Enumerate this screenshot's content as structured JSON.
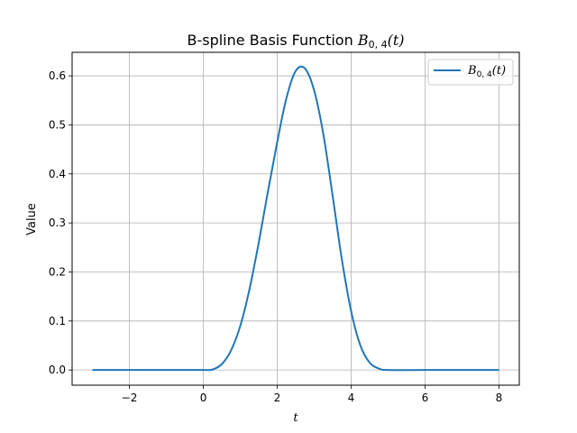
{
  "chart_data": {
    "type": "line",
    "title_text": "B-spline Basis Function ",
    "title_math": "B",
    "title_sub": "0, 4",
    "title_arg": "(t)",
    "xlabel": "t",
    "ylabel": "Value",
    "xlim": [
      -3.55,
      8.55
    ],
    "ylim": [
      -0.031,
      0.648
    ],
    "xticks": [
      -2,
      0,
      2,
      4,
      6,
      8
    ],
    "xtick_labels": [
      "−2",
      "0",
      "2",
      "4",
      "6",
      "8"
    ],
    "yticks": [
      0.0,
      0.1,
      0.2,
      0.3,
      0.4,
      0.5,
      0.6
    ],
    "ytick_labels": [
      "0.0",
      "0.1",
      "0.2",
      "0.3",
      "0.4",
      "0.5",
      "0.6"
    ],
    "grid": true,
    "legend_position": "top-right",
    "series": [
      {
        "name": "B_{0,4}(t)",
        "legend_math": "B",
        "legend_sub": "0, 4",
        "legend_arg": "(t)",
        "color": "#1f77b4",
        "x": [
          -3,
          -2,
          -1,
          0,
          0.25,
          0.5,
          0.75,
          1,
          1.25,
          1.5,
          1.75,
          2,
          2.25,
          2.5,
          2.75,
          3,
          3.25,
          3.5,
          3.75,
          4,
          4.25,
          4.5,
          4.75,
          5,
          6,
          7,
          8
        ],
        "y": [
          0,
          0,
          0,
          0,
          0.001,
          0.012,
          0.04,
          0.09,
          0.165,
          0.26,
          0.365,
          0.465,
          0.555,
          0.61,
          0.615,
          0.57,
          0.48,
          0.355,
          0.225,
          0.12,
          0.05,
          0.015,
          0.003,
          0,
          0,
          0,
          0
        ]
      }
    ]
  }
}
